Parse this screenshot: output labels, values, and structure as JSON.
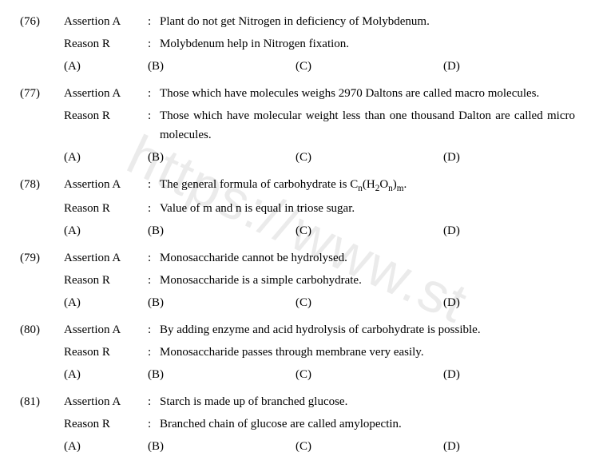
{
  "watermark_text": "https://www.st",
  "options": {
    "a": "(A)",
    "b": "(B)",
    "c": "(C)",
    "d": "(D)"
  },
  "labels": {
    "assertion": "Assertion A",
    "reason": "Reason R",
    "colon": ":"
  },
  "questions": [
    {
      "num": "(76)",
      "assertion": "Plant do not get Nitrogen in deficiency of Molybdenum.",
      "reason": "Molybdenum help in Nitrogen fixation."
    },
    {
      "num": "(77)",
      "assertion": "Those which have molecules weighs 2970 Daltons are called macro molecules.",
      "reason": "Those which have molecular weight less than one thousand Dalton are called micro molecules."
    },
    {
      "num": "(78)",
      "assertion_html": "The general formula of carbohydrate is C<sub>n</sub>(H<sub>2</sub>O<sub>n</sub>)<sub>m</sub>.",
      "reason": "Value of m and n is equal in triose sugar."
    },
    {
      "num": "(79)",
      "assertion": "Monosaccharide cannot be hydrolysed.",
      "reason": "Monosaccharide is a simple carbohydrate."
    },
    {
      "num": "(80)",
      "assertion": "By adding enzyme and acid hydrolysis of carbohydrate is possible.",
      "reason": "Monosaccharide passes through membrane very easily."
    },
    {
      "num": "(81)",
      "assertion": "Starch is made up of branched glucose.",
      "reason": "Branched chain of glucose are called amylopectin."
    }
  ]
}
